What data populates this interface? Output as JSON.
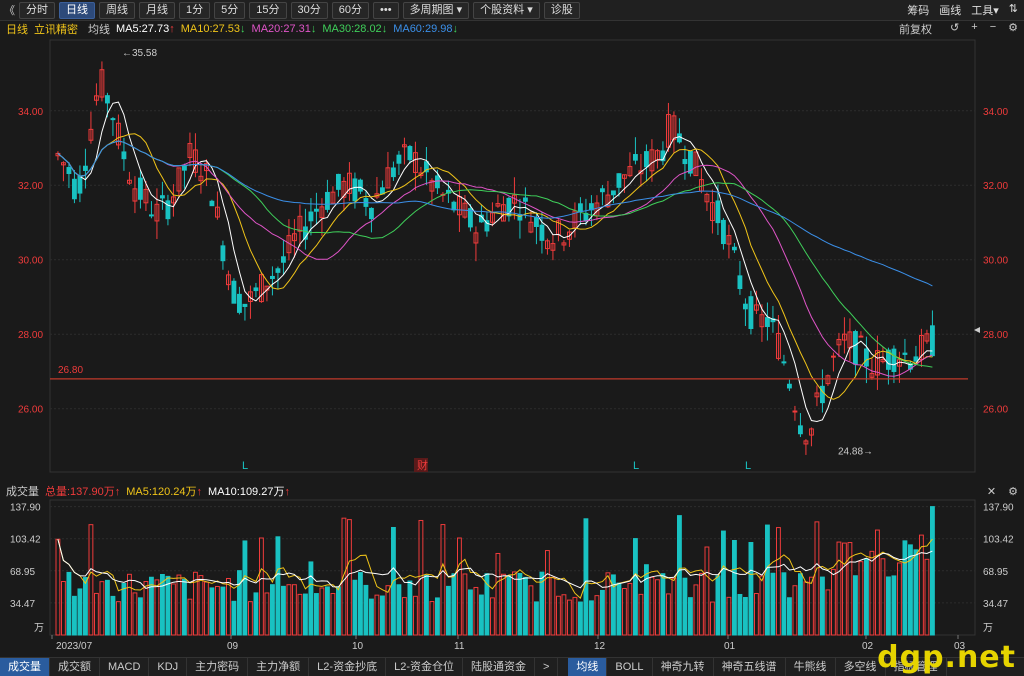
{
  "topbar": {
    "back": "《",
    "buttons": [
      "分时",
      "日线",
      "周线",
      "月线",
      "1分",
      "5分",
      "15分",
      "30分",
      "60分",
      "•••",
      "多周期图",
      "个股资料",
      "诊股"
    ],
    "dropdown_marks": [
      "",
      "",
      "",
      "",
      "",
      "",
      "",
      "",
      "",
      "",
      "▾",
      "▾",
      ""
    ],
    "active_index": 1,
    "right": [
      "筹码",
      "画线",
      "工具▾",
      "⇅"
    ]
  },
  "mabar": {
    "period": "日线",
    "stock": "立讯精密",
    "avg": "均线",
    "items": [
      {
        "label": "MA5:27.73",
        "arrow": "↑",
        "color": "#ffffff"
      },
      {
        "label": "MA10:27.53",
        "arrow": "↓",
        "color": "#f0c419"
      },
      {
        "label": "MA20:27.31",
        "arrow": "↓",
        "color": "#e055c8"
      },
      {
        "label": "MA30:28.02",
        "arrow": "↓",
        "color": "#3fcf5a"
      },
      {
        "label": "MA60:29.98",
        "arrow": "↓",
        "color": "#3b8fe8"
      }
    ],
    "fq": "前复权",
    "controls": [
      "↺",
      "+",
      "−",
      "⚙"
    ]
  },
  "price_axis": [
    "34.00",
    "32.00",
    "30.00",
    "28.00",
    "26.00"
  ],
  "annotations": {
    "high": "←35.58",
    "low": "24.88→",
    "line_value": "26.80",
    "markers": [
      "L",
      "财",
      "L",
      "L"
    ]
  },
  "volume": {
    "title": "成交量",
    "total": "总量:137.90万",
    "arrow_total": "↑",
    "ma5": "MA5:120.24万",
    "arrow_ma5": "↑",
    "ma10": "MA10:109.27万",
    "arrow_ma10": "↑",
    "axis": [
      "137.90",
      "103.42",
      "68.95",
      "34.47",
      "万"
    ],
    "controls": [
      "✕",
      "⚙"
    ]
  },
  "x_axis": [
    "2023/07",
    "09",
    "10",
    "11",
    "12",
    "01",
    "02",
    "03"
  ],
  "bottom_tabs_left": [
    "成交量",
    "成交额",
    "MACD",
    "KDJ",
    "主力密码",
    "主力净额",
    "L2-资金抄底",
    "L2-资金仓位",
    "陆股通资金",
    ">"
  ],
  "bottom_tabs_right": [
    "均线",
    "BOLL",
    "神奇九转",
    "神奇五线谱",
    "牛熊线",
    "多空线",
    "指标管理"
  ],
  "watermark": "dgp.net",
  "colors": {
    "up": "#ef3b3b",
    "down": "#19c2c2",
    "ma5": "#ffffff",
    "ma10": "#f0c419",
    "ma20": "#e055c8",
    "ma30": "#3fcf5a",
    "ma60": "#3b8fe8",
    "hline": "#c0392b"
  }
}
